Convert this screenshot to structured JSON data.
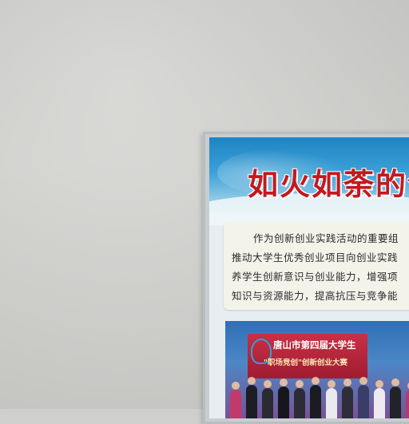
{
  "poster": {
    "title": "如火如荼的创",
    "body_lines": [
      "作为创新创业实践活动的重要组",
      "推动大学生优秀创业项目向创业实践",
      "养学生创新意识与创业能力，增强项",
      "知识与资源能力，提高抗压与竞争能"
    ],
    "photo_sign": {
      "line1": "唐山市第四届大学生",
      "line2": "\"职场竞创\"创新创业大赛"
    }
  },
  "colors": {
    "wall": "#d3d3d0",
    "banner_blue": "#2a8fcb",
    "title_red": "#c21a1f",
    "text_panel": "#f4f3ea"
  }
}
